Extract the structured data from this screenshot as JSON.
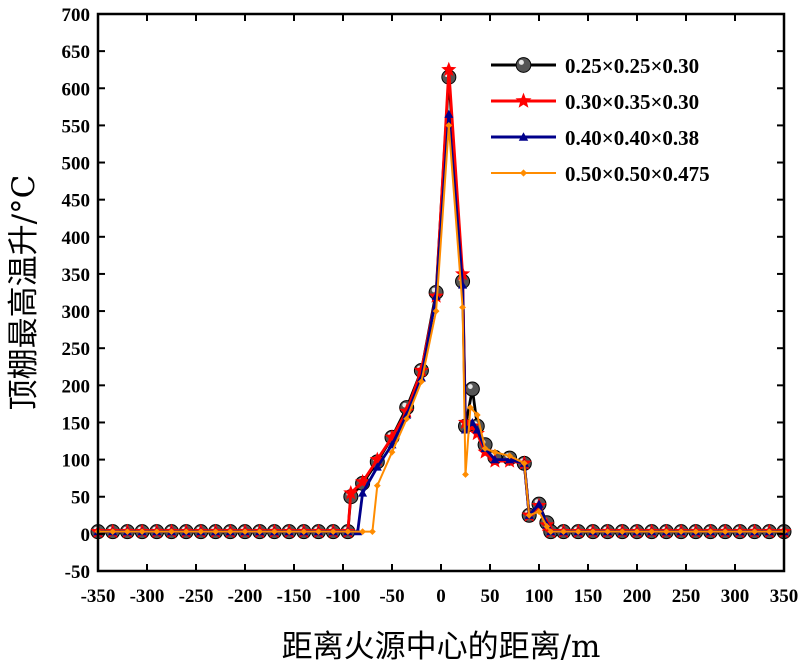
{
  "chart_data": {
    "type": "line",
    "title": "",
    "xlabel": "距离火源中心的距离/m",
    "ylabel": "顶棚最高温升/°C",
    "xlim": [
      -350,
      350
    ],
    "ylim": [
      -50,
      700
    ],
    "xticks": [
      -350,
      -300,
      -250,
      -200,
      -150,
      -100,
      -50,
      0,
      50,
      100,
      150,
      200,
      250,
      300,
      350
    ],
    "yticks": [
      -50,
      0,
      50,
      100,
      150,
      200,
      250,
      300,
      350,
      400,
      450,
      500,
      550,
      600,
      650,
      700
    ],
    "xtick_labels": [
      "-350",
      "-300",
      "-250",
      "-200",
      "-150",
      "-100",
      "-50",
      "0",
      "50",
      "100",
      "150",
      "200",
      "250",
      "300",
      "350"
    ],
    "ytick_labels": [
      "-50",
      "0",
      "50",
      "100",
      "150",
      "200",
      "250",
      "300",
      "350",
      "400",
      "450",
      "500",
      "550",
      "600",
      "650",
      "700"
    ],
    "legend_position": "top-right",
    "grid": false,
    "series": [
      {
        "name": "0.25×0.25×0.30",
        "color": "#000000",
        "marker": "sphere",
        "x": [
          -350,
          -335,
          -320,
          -305,
          -290,
          -275,
          -260,
          -245,
          -230,
          -215,
          -200,
          -185,
          -170,
          -155,
          -140,
          -125,
          -110,
          -95,
          -92,
          -80,
          -65,
          -50,
          -35,
          -20,
          -5,
          8,
          22,
          25,
          32,
          37,
          45,
          55,
          70,
          85,
          90,
          100,
          108,
          112,
          125,
          140,
          155,
          170,
          185,
          200,
          215,
          230,
          245,
          260,
          275,
          290,
          305,
          320,
          335,
          350
        ],
        "y": [
          3,
          3,
          3,
          3,
          3,
          3,
          3,
          3,
          3,
          3,
          3,
          3,
          3,
          3,
          3,
          3,
          3,
          3,
          50,
          68,
          97,
          130,
          170,
          220,
          325,
          615,
          340,
          145,
          195,
          145,
          120,
          103,
          102,
          95,
          25,
          40,
          15,
          3,
          3,
          3,
          3,
          3,
          3,
          3,
          3,
          3,
          3,
          3,
          3,
          3,
          3,
          3,
          3,
          3
        ]
      },
      {
        "name": "0.30×0.35×0.30",
        "color": "#ff0000",
        "marker": "star",
        "x": [
          -350,
          -335,
          -320,
          -305,
          -290,
          -275,
          -260,
          -245,
          -230,
          -215,
          -200,
          -185,
          -170,
          -155,
          -140,
          -125,
          -110,
          -95,
          -92,
          -80,
          -65,
          -50,
          -35,
          -20,
          -5,
          8,
          22,
          25,
          32,
          37,
          45,
          55,
          70,
          85,
          90,
          100,
          108,
          112,
          125,
          140,
          155,
          170,
          185,
          200,
          215,
          230,
          245,
          260,
          275,
          290,
          305,
          320,
          335,
          350
        ],
        "y": [
          3,
          3,
          3,
          3,
          3,
          3,
          3,
          3,
          3,
          3,
          3,
          3,
          3,
          3,
          3,
          3,
          3,
          3,
          55,
          70,
          100,
          130,
          165,
          220,
          320,
          625,
          350,
          150,
          145,
          135,
          110,
          98,
          98,
          95,
          25,
          38,
          12,
          3,
          3,
          3,
          3,
          3,
          3,
          3,
          3,
          3,
          3,
          3,
          3,
          3,
          3,
          3,
          3,
          3
        ]
      },
      {
        "name": "0.40×0.40×0.38",
        "color": "#00008b",
        "marker": "triangle",
        "x": [
          -350,
          -335,
          -320,
          -305,
          -290,
          -275,
          -260,
          -245,
          -230,
          -215,
          -200,
          -185,
          -170,
          -155,
          -140,
          -125,
          -110,
          -95,
          -85,
          -80,
          -65,
          -50,
          -35,
          -20,
          -5,
          8,
          22,
          25,
          32,
          37,
          45,
          55,
          70,
          85,
          90,
          100,
          108,
          112,
          125,
          140,
          155,
          170,
          185,
          200,
          215,
          230,
          245,
          260,
          275,
          290,
          305,
          320,
          335,
          350
        ],
        "y": [
          3,
          3,
          3,
          3,
          3,
          3,
          3,
          3,
          3,
          3,
          3,
          3,
          3,
          3,
          3,
          3,
          3,
          3,
          3,
          55,
          90,
          120,
          160,
          210,
          320,
          565,
          335,
          140,
          150,
          140,
          115,
          100,
          100,
          95,
          25,
          40,
          12,
          3,
          3,
          3,
          3,
          3,
          3,
          3,
          3,
          3,
          3,
          3,
          3,
          3,
          3,
          3,
          3,
          3
        ]
      },
      {
        "name": "0.50×0.50×0.475",
        "color": "#ff8c00",
        "marker": "diamond",
        "x": [
          -350,
          -335,
          -320,
          -305,
          -290,
          -275,
          -260,
          -245,
          -230,
          -215,
          -200,
          -185,
          -170,
          -155,
          -140,
          -125,
          -110,
          -95,
          -80,
          -70,
          -65,
          -50,
          -35,
          -20,
          -5,
          8,
          22,
          25,
          30,
          37,
          45,
          55,
          70,
          85,
          90,
          100,
          108,
          112,
          125,
          140,
          155,
          170,
          185,
          200,
          215,
          230,
          245,
          260,
          275,
          290,
          305,
          320,
          335,
          350
        ],
        "y": [
          3,
          3,
          3,
          3,
          3,
          3,
          3,
          3,
          3,
          3,
          3,
          3,
          3,
          3,
          3,
          3,
          3,
          3,
          3,
          3,
          65,
          110,
          155,
          205,
          300,
          550,
          305,
          80,
          170,
          160,
          115,
          110,
          105,
          95,
          25,
          30,
          10,
          3,
          3,
          3,
          3,
          3,
          3,
          3,
          3,
          3,
          3,
          3,
          3,
          3,
          3,
          3,
          3,
          3
        ]
      }
    ]
  }
}
